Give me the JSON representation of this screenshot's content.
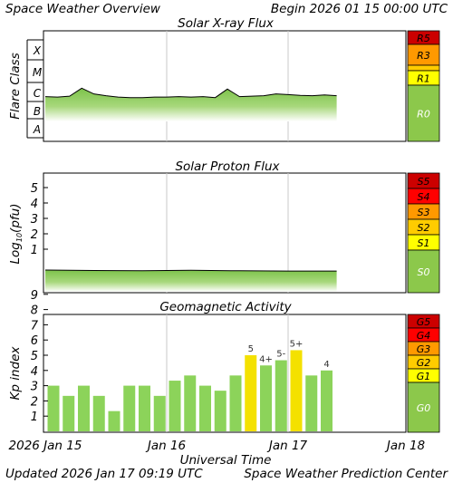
{
  "header": {
    "title": "Space Weather Overview",
    "begin": "Begin 2026 01 15 00:00 UTC"
  },
  "footer": {
    "updated": "Updated 2026 Jan 17 09:19 UTC",
    "center": "Space Weather Prediction Center"
  },
  "x_axis": {
    "label": "Universal Time",
    "ticks": [
      "2026 Jan 15",
      "Jan 16",
      "Jan 17",
      "Jan 18"
    ]
  },
  "panels": {
    "xray": {
      "title": "Solar X-ray Flux",
      "ylabel": "Flare Class"
    },
    "proton": {
      "title": "Solar Proton Flux",
      "ylabel": "Log",
      "ylabel_sub": "10",
      "ylabel_tail": "(pfu)"
    },
    "geomag": {
      "title": "Geomagnetic Activity",
      "ylabel": "Kp index"
    }
  },
  "colors": {
    "green": "#8cc84b",
    "yellow": "#ffff00",
    "gold": "#ffcc00",
    "orange": "#ff9900",
    "red": "#ff0000",
    "darkred": "#cc0000",
    "kp_bar_green": "#8cd35a",
    "kp_bar_yellow": "#f4e100"
  },
  "chart_data": [
    {
      "type": "area",
      "title": "Solar X-ray Flux",
      "ylabel": "Flare Class",
      "xlabel": "Universal Time",
      "x_range": [
        "2026-01-15 00:00",
        "2026-01-18 00:00"
      ],
      "y_tick_labels": [
        "A",
        "B",
        "C",
        "M",
        "X"
      ],
      "x": [
        0,
        0.1,
        0.2,
        0.3,
        0.4,
        0.5,
        0.6,
        0.7,
        0.8,
        0.9,
        1.0,
        1.1,
        1.2,
        1.3,
        1.4,
        1.5,
        1.6,
        1.7,
        1.8,
        1.9,
        2.0,
        2.1,
        2.2,
        2.3,
        2.4
      ],
      "y": [
        "C1.8",
        "C1.7",
        "C1.9",
        "C5.0",
        "C2.5",
        "C2.0",
        "C1.7",
        "C1.6",
        "C1.6",
        "C1.7",
        "C1.7",
        "C1.8",
        "C1.7",
        "C1.8",
        "C1.6",
        "C4.5",
        "C1.8",
        "C1.9",
        "C2.0",
        "C2.5",
        "C2.3",
        "C2.1",
        "C2.0",
        "C2.2",
        "C2.0"
      ],
      "scale_labels": [
        "R5",
        "R3",
        "R1",
        "R0"
      ]
    },
    {
      "type": "area",
      "title": "Solar Proton Flux",
      "ylabel": "Log10(pfu)",
      "xlabel": "Universal Time",
      "x_range": [
        "2026-01-15 00:00",
        "2026-01-18 00:00"
      ],
      "y_ticks": [
        1,
        2,
        3,
        4,
        5
      ],
      "x": [
        0,
        0.4,
        0.8,
        1.2,
        1.6,
        2.0,
        2.4
      ],
      "y": [
        -0.35,
        -0.38,
        -0.4,
        -0.37,
        -0.4,
        -0.42,
        -0.42
      ],
      "scale_labels": [
        "S5",
        "S4",
        "S3",
        "S2",
        "S1",
        "S0"
      ]
    },
    {
      "type": "bar",
      "title": "Geomagnetic Activity",
      "ylabel": "Kp index",
      "xlabel": "Universal Time",
      "ylim": [
        0,
        9
      ],
      "y_ticks": [
        1,
        2,
        3,
        4,
        5,
        6,
        7,
        8,
        9
      ],
      "values": [
        3,
        2.33,
        3,
        2.33,
        1.33,
        3,
        3,
        2.33,
        3.33,
        3.67,
        3,
        2.67,
        3.67,
        5,
        4.33,
        4.67,
        5.33,
        3.67,
        4
      ],
      "value_labels": [
        "",
        "",
        "",
        "",
        "",
        "",
        "",
        "",
        "",
        "",
        "",
        "",
        "",
        "5",
        "4+",
        "5-",
        "5+",
        "",
        "4"
      ],
      "scale_labels": [
        "G5",
        "G4",
        "G3",
        "G2",
        "G1",
        "G0"
      ]
    }
  ]
}
